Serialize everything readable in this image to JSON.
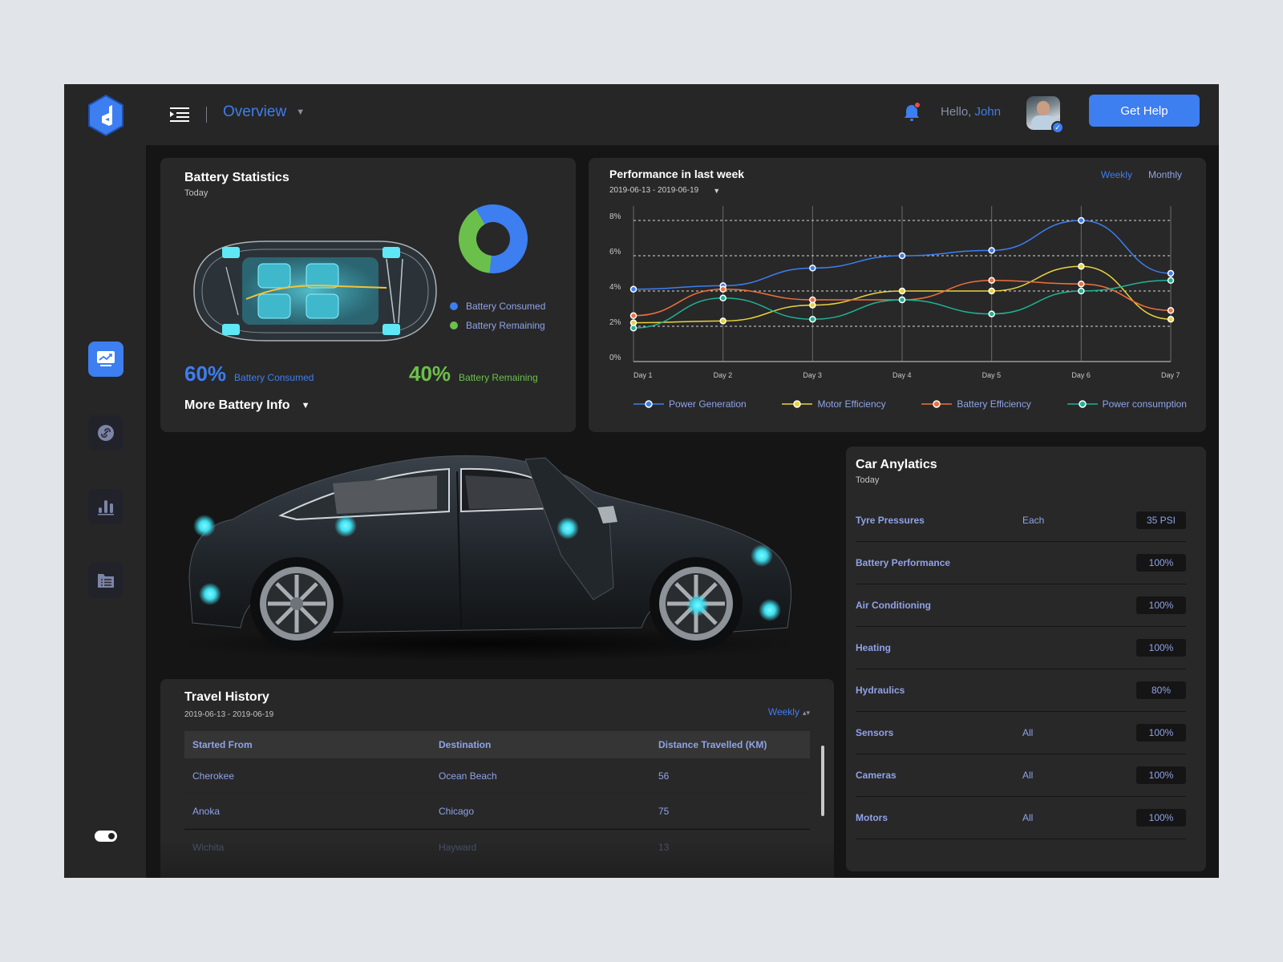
{
  "header": {
    "menu_icon": "menu-indent-icon",
    "page_select": "Overview",
    "greeting": "Hello,",
    "user_name": "John",
    "help_button": "Get Help",
    "notification_badge": true
  },
  "sidebar": {
    "items": [
      {
        "id": "overview",
        "icon": "monitor-chart-icon",
        "active": true
      },
      {
        "id": "connections",
        "icon": "link-icon",
        "active": false
      },
      {
        "id": "statistics",
        "icon": "bar-chart-icon",
        "active": false
      },
      {
        "id": "reports",
        "icon": "folder-list-icon",
        "active": false
      }
    ],
    "theme_toggle": "dark"
  },
  "battery": {
    "title": "Battery Statistics",
    "subtitle": "Today",
    "legend": [
      {
        "label": "Battery Consumed",
        "color": "#3d7ef0"
      },
      {
        "label": "Battery Remaining",
        "color": "#6bc04b"
      }
    ],
    "consumed_pct": "60%",
    "consumed_label": "Battery Consumed",
    "remaining_pct": "40%",
    "remaining_label": "Battery Remaining",
    "more_info": "More Battery Info"
  },
  "performance": {
    "title": "Performance in last week",
    "range": "2019-06-13 - 2019-06-19",
    "toggles": {
      "weekly": "Weekly",
      "monthly": "Monthly"
    },
    "legend": [
      {
        "label": "Power Generation",
        "color": "#3d7ef0"
      },
      {
        "label": "Motor Efficiency",
        "color": "#e8d33f"
      },
      {
        "label": "Battery Efficiency",
        "color": "#f0703c"
      },
      {
        "label": "Power consumption",
        "color": "#1fb394"
      }
    ]
  },
  "chart_data": {
    "type": "line",
    "title": "Performance in last week",
    "subtitle": "2019-06-13 - 2019-06-19",
    "categories": [
      "Day 1",
      "Day 2",
      "Day 3",
      "Day 4",
      "Day 5",
      "Day 6",
      "Day 7"
    ],
    "yticks": [
      "0%",
      "2%",
      "4%",
      "6%",
      "8%"
    ],
    "ylim": [
      0,
      8
    ],
    "ylabel": "",
    "xlabel": "",
    "grid": "horizontal dashed + vertical solid",
    "legend_position": "bottom",
    "series": [
      {
        "name": "Power Generation",
        "color": "#3d7ef0",
        "values": [
          4.1,
          4.3,
          5.3,
          6.0,
          6.3,
          8.0,
          5.0
        ]
      },
      {
        "name": "Motor Efficiency",
        "color": "#e8d33f",
        "values": [
          2.2,
          2.3,
          3.2,
          4.0,
          4.0,
          5.4,
          2.4
        ]
      },
      {
        "name": "Battery Efficiency",
        "color": "#f0703c",
        "values": [
          2.6,
          4.1,
          3.5,
          3.5,
          4.6,
          4.4,
          2.9
        ]
      },
      {
        "name": "Power consumption",
        "color": "#1fb394",
        "values": [
          1.9,
          3.6,
          2.4,
          3.5,
          2.7,
          4.0,
          4.6
        ]
      }
    ]
  },
  "travel": {
    "title": "Travel History",
    "range": "2019-06-13 - 2019-06-19",
    "period": "Weekly",
    "columns": [
      "Started From",
      "Destination",
      "Distance Travelled (KM)"
    ],
    "rows": [
      [
        "Cherokee",
        "Ocean Beach",
        "56"
      ],
      [
        "Anoka",
        "Chicago",
        "75"
      ],
      [
        "Wichita",
        "Hayward",
        "13"
      ]
    ]
  },
  "analytics": {
    "title": "Car Anylatics",
    "subtitle": "Today",
    "rows": [
      {
        "name": "Tyre Pressures",
        "scope": "Each",
        "value": "35 PSI"
      },
      {
        "name": "Battery Performance",
        "scope": "",
        "value": "100%"
      },
      {
        "name": "Air Conditioning",
        "scope": "",
        "value": "100%"
      },
      {
        "name": "Heating",
        "scope": "",
        "value": "100%"
      },
      {
        "name": "Hydraulics",
        "scope": "",
        "value": "80%"
      },
      {
        "name": "Sensors",
        "scope": "All",
        "value": "100%"
      },
      {
        "name": "Cameras",
        "scope": "All",
        "value": "100%"
      },
      {
        "name": "Motors",
        "scope": "All",
        "value": "100%"
      }
    ]
  }
}
